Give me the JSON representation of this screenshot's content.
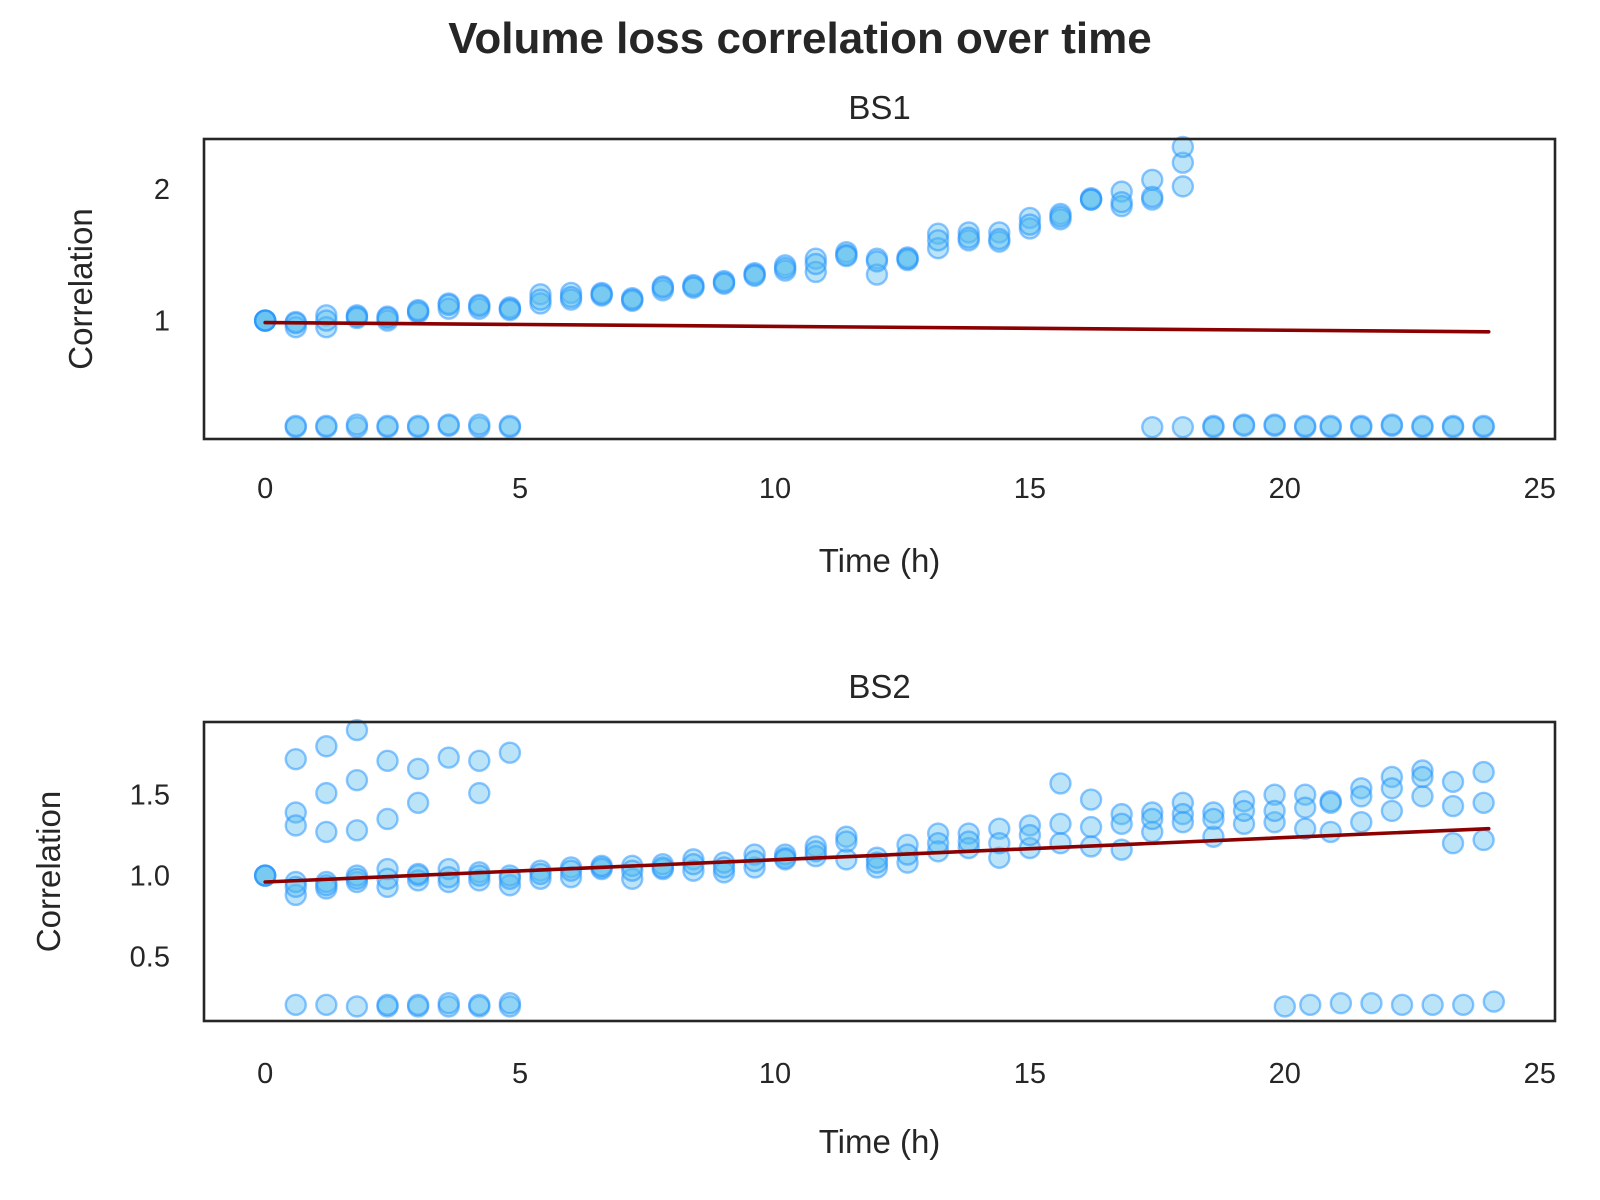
{
  "figure": {
    "title": "Volume loss correlation over time"
  },
  "chart_data": [
    {
      "type": "scatter",
      "title": "BS1",
      "xlabel": "Time (h)",
      "ylabel": "Correlation",
      "xlim": [
        -1.2,
        25.3
      ],
      "ylim": [
        0.1,
        2.38
      ],
      "xticks": [
        0,
        5,
        10,
        15,
        20,
        25
      ],
      "yticks": [
        1,
        2
      ],
      "ytick_labels": [
        "1",
        "2"
      ],
      "grid": false,
      "marker_color": "#55bbee",
      "edge_color": "#1e90ff",
      "line_color": "#8b0000",
      "series": [
        {
          "kind": "points",
          "x": [
            0,
            0,
            0,
            0,
            0.6,
            0.6,
            0.6,
            1.2,
            1.2,
            1.2,
            1.8,
            1.8,
            1.8,
            2.4,
            2.4,
            2.4,
            3.0,
            3.0,
            3.0,
            3.6,
            3.6,
            3.6,
            4.2,
            4.2,
            4.2,
            4.8,
            4.8,
            4.8,
            5.4,
            5.4,
            5.4,
            6.0,
            6.0,
            6.0,
            6.6,
            6.6,
            6.6,
            7.2,
            7.2,
            7.2,
            7.8,
            7.8,
            7.8,
            8.4,
            8.4,
            8.4,
            9.0,
            9.0,
            9.0,
            9.6,
            9.6,
            9.6,
            10.2,
            10.2,
            10.2,
            10.8,
            10.8,
            10.8,
            11.4,
            11.4,
            11.4,
            12.0,
            12.0,
            12.0,
            12.6,
            12.6,
            12.6,
            13.2,
            13.2,
            13.2,
            13.8,
            13.8,
            13.8,
            14.4,
            14.4,
            14.4,
            15.0,
            15.0,
            15.0,
            15.6,
            15.6,
            15.6,
            16.2,
            16.2,
            16.2,
            16.8,
            16.8,
            16.8,
            17.4,
            17.4,
            17.4,
            18.0,
            18.0,
            18.0
          ],
          "y": [
            1.0,
            1.0,
            1.0,
            1.0,
            0.99,
            0.95,
            0.98,
            1.04,
            0.95,
            1.0,
            1.03,
            1.04,
            1.02,
            1.03,
            1.0,
            1.02,
            1.07,
            1.06,
            1.08,
            1.13,
            1.09,
            1.12,
            1.12,
            1.09,
            1.11,
            1.1,
            1.09,
            1.08,
            1.2,
            1.13,
            1.16,
            1.21,
            1.16,
            1.18,
            1.21,
            1.19,
            1.2,
            1.17,
            1.15,
            1.16,
            1.26,
            1.23,
            1.25,
            1.26,
            1.27,
            1.25,
            1.29,
            1.3,
            1.28,
            1.36,
            1.35,
            1.34,
            1.42,
            1.38,
            1.4,
            1.47,
            1.37,
            1.43,
            1.52,
            1.5,
            1.49,
            1.47,
            1.35,
            1.45,
            1.48,
            1.46,
            1.47,
            1.66,
            1.55,
            1.61,
            1.67,
            1.61,
            1.63,
            1.67,
            1.6,
            1.62,
            1.78,
            1.7,
            1.73,
            1.81,
            1.77,
            1.79,
            1.93,
            1.92,
            1.92,
            1.98,
            1.87,
            1.9,
            2.07,
            1.92,
            1.94,
            2.2,
            2.02,
            2.32
          ]
        },
        {
          "kind": "points",
          "x": [
            0.6,
            0.6,
            1.2,
            1.2,
            1.8,
            1.8,
            2.4,
            2.4,
            3.0,
            3.0,
            3.6,
            3.6,
            4.2,
            4.2,
            4.8,
            4.8,
            17.4,
            18.0,
            18.6,
            18.6,
            19.2,
            19.2,
            19.8,
            19.8,
            20.4,
            20.4,
            20.9,
            20.9,
            21.5,
            21.5,
            22.1,
            22.1,
            22.7,
            22.7,
            23.3,
            23.3,
            23.9,
            23.9
          ],
          "y": [
            0.19,
            0.2,
            0.19,
            0.2,
            0.19,
            0.21,
            0.19,
            0.2,
            0.19,
            0.2,
            0.2,
            0.21,
            0.19,
            0.21,
            0.19,
            0.2,
            0.19,
            0.19,
            0.2,
            0.19,
            0.21,
            0.2,
            0.2,
            0.21,
            0.19,
            0.2,
            0.19,
            0.2,
            0.2,
            0.19,
            0.2,
            0.21,
            0.19,
            0.2,
            0.2,
            0.19,
            0.19,
            0.2
          ]
        },
        {
          "kind": "line",
          "x": [
            0,
            24
          ],
          "y": [
            0.985,
            0.915
          ]
        }
      ]
    },
    {
      "type": "scatter",
      "title": "BS2",
      "xlabel": "Time (h)",
      "ylabel": "Correlation",
      "xlim": [
        -1.2,
        25.3
      ],
      "ylim": [
        0.1,
        1.95
      ],
      "xticks": [
        0,
        5,
        10,
        15,
        20,
        25
      ],
      "yticks": [
        0.5,
        1.0,
        1.5
      ],
      "ytick_labels": [
        "0.5",
        "1.0",
        "1.5"
      ],
      "grid": false,
      "marker_color": "#55bbee",
      "edge_color": "#1e90ff",
      "line_color": "#8b0000",
      "series": [
        {
          "kind": "points",
          "x": [
            0,
            0,
            0,
            0.6,
            0.6,
            0.6,
            1.2,
            1.2,
            1.2,
            1.8,
            1.8,
            1.8,
            2.4,
            2.4,
            2.4,
            3.0,
            3.0,
            3.0,
            3.6,
            3.6,
            3.6,
            4.2,
            4.2,
            4.2,
            4.8,
            4.8,
            4.8,
            5.4,
            5.4,
            5.4,
            6.0,
            6.0,
            6.0,
            6.6,
            6.6,
            6.6,
            7.2,
            7.2,
            7.2,
            7.8,
            7.8,
            7.8,
            8.4,
            8.4,
            8.4,
            9.0,
            9.0,
            9.0,
            9.6,
            9.6,
            9.6,
            10.2,
            10.2,
            10.2,
            10.8,
            10.8,
            10.8,
            11.4,
            11.4,
            11.4,
            12.0,
            12.0,
            12.0,
            12.6,
            12.6,
            12.6,
            13.2,
            13.2,
            13.2,
            13.8,
            13.8,
            13.8,
            14.4,
            14.4,
            14.4,
            15.0,
            15.0,
            15.0,
            15.6,
            15.6,
            15.6,
            16.2,
            16.2,
            16.2,
            16.8,
            16.8,
            16.8,
            17.4,
            17.4,
            17.4,
            18.0,
            18.0,
            18.0,
            18.6,
            18.6,
            18.6,
            19.2,
            19.2,
            19.2,
            19.8,
            19.8,
            19.8,
            20.4,
            20.4,
            20.4,
            20.9,
            20.9,
            20.9,
            21.5,
            21.5,
            21.5,
            22.1,
            22.1,
            22.1,
            22.7,
            22.7,
            22.7,
            23.3,
            23.3,
            23.3,
            23.9,
            23.9,
            23.9
          ],
          "y": [
            1.0,
            1.0,
            1.0,
            0.88,
            0.96,
            0.93,
            0.92,
            0.96,
            0.94,
            0.96,
            1.0,
            0.98,
            0.93,
            1.04,
            0.98,
            1.0,
            0.97,
            1.01,
            0.96,
            1.04,
            0.99,
            1.02,
            0.97,
            1.0,
            0.94,
            1.0,
            0.98,
            1.03,
            0.98,
            1.01,
            1.05,
            0.99,
            1.03,
            1.05,
            1.04,
            1.06,
            0.98,
            1.06,
            1.03,
            1.04,
            1.07,
            1.05,
            1.1,
            1.03,
            1.07,
            1.02,
            1.08,
            1.05,
            1.05,
            1.13,
            1.09,
            1.11,
            1.13,
            1.1,
            1.18,
            1.12,
            1.15,
            1.1,
            1.24,
            1.21,
            1.05,
            1.11,
            1.08,
            1.08,
            1.19,
            1.13,
            1.26,
            1.15,
            1.2,
            1.26,
            1.17,
            1.21,
            1.11,
            1.29,
            1.2,
            1.17,
            1.31,
            1.25,
            1.57,
            1.32,
            1.2,
            1.47,
            1.3,
            1.18,
            1.16,
            1.38,
            1.32,
            1.39,
            1.27,
            1.35,
            1.45,
            1.38,
            1.33,
            1.24,
            1.39,
            1.35,
            1.46,
            1.32,
            1.4,
            1.5,
            1.33,
            1.4,
            1.5,
            1.29,
            1.42,
            1.46,
            1.27,
            1.45,
            1.54,
            1.33,
            1.49,
            1.61,
            1.4,
            1.54,
            1.65,
            1.49,
            1.61,
            1.58,
            1.2,
            1.43,
            1.64,
            1.22,
            1.45
          ]
        },
        {
          "kind": "points",
          "x": [
            0.6,
            0.6,
            0.6,
            1.2,
            1.2,
            1.2,
            1.8,
            1.8,
            1.8,
            2.4,
            2.4,
            3.0,
            3.0,
            3.6,
            4.2,
            4.2,
            4.8
          ],
          "y": [
            1.72,
            1.39,
            1.31,
            1.8,
            1.51,
            1.27,
            1.9,
            1.59,
            1.28,
            1.71,
            1.35,
            1.66,
            1.45,
            1.73,
            1.71,
            1.51,
            1.76
          ]
        },
        {
          "kind": "points",
          "x": [
            0.6,
            1.2,
            1.8,
            2.4,
            2.4,
            3.0,
            3.0,
            3.6,
            3.6,
            4.2,
            4.2,
            4.8,
            4.8,
            20.0,
            20.5,
            21.1,
            21.7,
            22.3,
            22.9,
            23.5,
            24.1
          ],
          "y": [
            0.2,
            0.2,
            0.19,
            0.19,
            0.2,
            0.19,
            0.2,
            0.19,
            0.21,
            0.19,
            0.2,
            0.19,
            0.21,
            0.19,
            0.2,
            0.21,
            0.21,
            0.2,
            0.2,
            0.2,
            0.22
          ]
        },
        {
          "kind": "line",
          "x": [
            0,
            24
          ],
          "y": [
            0.96,
            1.29
          ]
        }
      ]
    }
  ]
}
